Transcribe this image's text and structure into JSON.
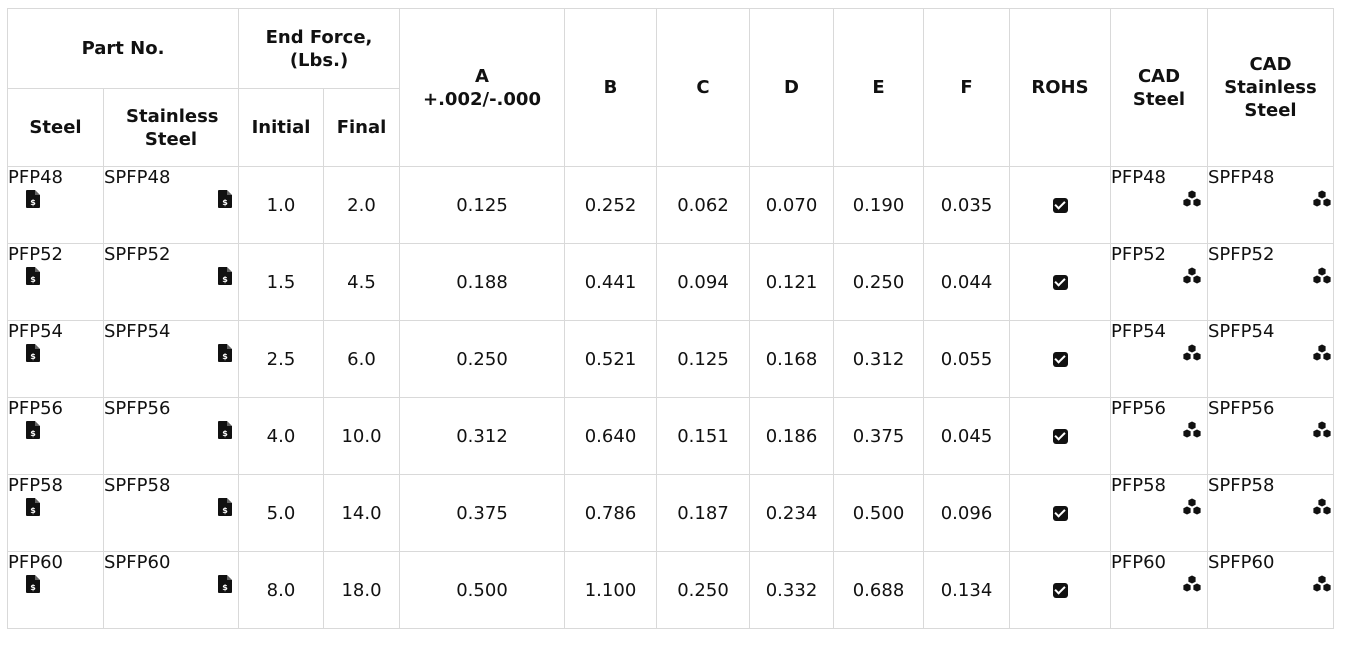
{
  "header": {
    "part_no": "Part No.",
    "end_force": "End Force, (Lbs.)",
    "a_line1": "A",
    "a_line2": "+.002/-.000",
    "b": "B",
    "c": "C",
    "d": "D",
    "e": "E",
    "f": "F",
    "rohs": "ROHS",
    "cad_steel": "CAD Steel",
    "cad_stainless": "CAD Stainless Steel",
    "steel": "Steel",
    "stainless": "Stainless Steel",
    "initial": "Initial",
    "final": "Final"
  },
  "icons": {
    "price": "price-document-icon",
    "cad": "cad-model-icon",
    "rohs": "checkbox-checked-icon"
  },
  "rows": [
    {
      "steel": "PFP48",
      "stainless": "SPFP48",
      "initial": "1.0",
      "final": "2.0",
      "a": "0.125",
      "b": "0.252",
      "c": "0.062",
      "d": "0.070",
      "e": "0.190",
      "f": "0.035",
      "cad_steel": "PFP48",
      "cad_stainless": "SPFP48"
    },
    {
      "steel": "PFP52",
      "stainless": "SPFP52",
      "initial": "1.5",
      "final": "4.5",
      "a": "0.188",
      "b": "0.441",
      "c": "0.094",
      "d": "0.121",
      "e": "0.250",
      "f": "0.044",
      "cad_steel": "PFP52",
      "cad_stainless": "SPFP52"
    },
    {
      "steel": "PFP54",
      "stainless": "SPFP54",
      "initial": "2.5",
      "final": "6.0",
      "a": "0.250",
      "b": "0.521",
      "c": "0.125",
      "d": "0.168",
      "e": "0.312",
      "f": "0.055",
      "cad_steel": "PFP54",
      "cad_stainless": "SPFP54"
    },
    {
      "steel": "PFP56",
      "stainless": "SPFP56",
      "initial": "4.0",
      "final": "10.0",
      "a": "0.312",
      "b": "0.640",
      "c": "0.151",
      "d": "0.186",
      "e": "0.375",
      "f": "0.045",
      "cad_steel": "PFP56",
      "cad_stainless": "SPFP56"
    },
    {
      "steel": "PFP58",
      "stainless": "SPFP58",
      "initial": "5.0",
      "final": "14.0",
      "a": "0.375",
      "b": "0.786",
      "c": "0.187",
      "d": "0.234",
      "e": "0.500",
      "f": "0.096",
      "cad_steel": "PFP58",
      "cad_stainless": "SPFP58"
    },
    {
      "steel": "PFP60",
      "stainless": "SPFP60",
      "initial": "8.0",
      "final": "18.0",
      "a": "0.500",
      "b": "1.100",
      "c": "0.250",
      "d": "0.332",
      "e": "0.688",
      "f": "0.134",
      "cad_steel": "PFP60",
      "cad_stainless": "SPFP60"
    }
  ]
}
